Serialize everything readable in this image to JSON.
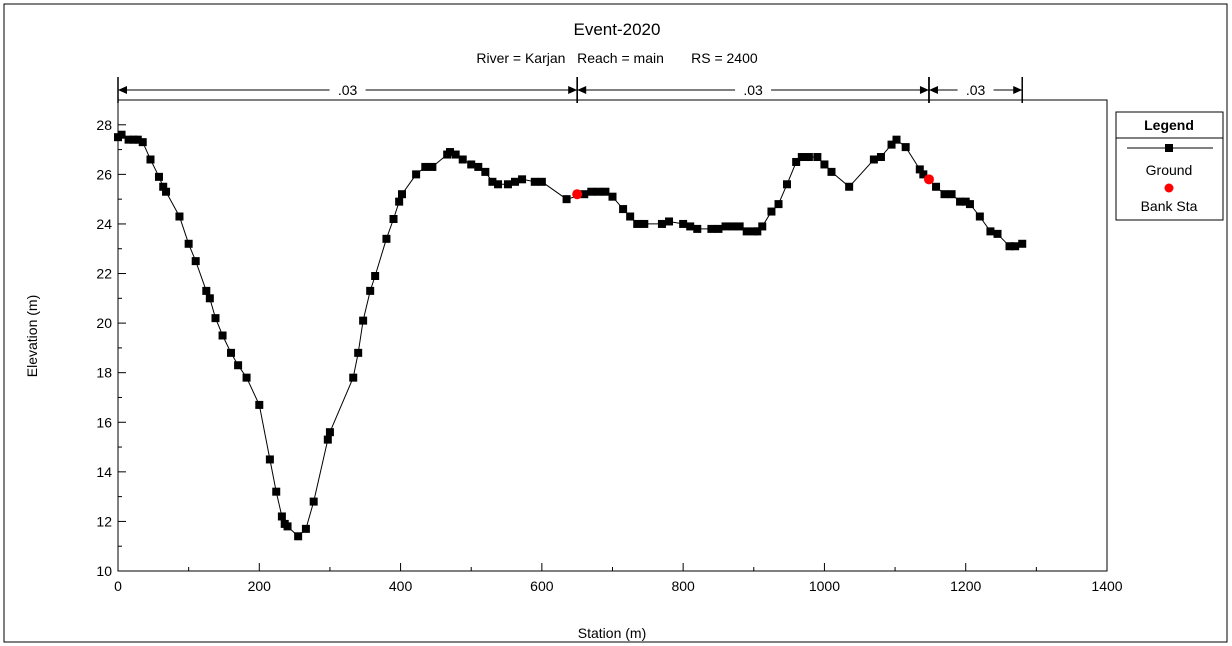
{
  "chart_data": {
    "type": "line",
    "title": "Event-2020",
    "subtitle": "River = Karjan   Reach = main       RS = 2400",
    "xlabel": "Station (m)",
    "ylabel": "Elevation (m)",
    "xlim": [
      0,
      1400
    ],
    "ylim": [
      10,
      29
    ],
    "xticks": [
      "0",
      "200",
      "400",
      "600",
      "800",
      "1000",
      "1200",
      "1400"
    ],
    "yticks": [
      "10",
      "12",
      "14",
      "16",
      "18",
      "20",
      "22",
      "24",
      "26",
      "28"
    ],
    "grid": false,
    "legend": {
      "title": "Legend",
      "placement": "right",
      "entries": [
        "Ground",
        "Bank Sta"
      ]
    },
    "manning": [
      {
        "label": ".03",
        "from": 0,
        "to": 650
      },
      {
        "label": ".03",
        "from": 650,
        "to": 1148
      },
      {
        "label": ".03",
        "from": 1148,
        "to": 1280
      }
    ],
    "series": [
      {
        "name": "Ground",
        "color": "#000000",
        "marker": "square",
        "points": [
          [
            0,
            27.5
          ],
          [
            5,
            27.6
          ],
          [
            15,
            27.4
          ],
          [
            22,
            27.4
          ],
          [
            28,
            27.4
          ],
          [
            35,
            27.3
          ],
          [
            46,
            26.6
          ],
          [
            58,
            25.9
          ],
          [
            64,
            25.5
          ],
          [
            68,
            25.3
          ],
          [
            87,
            24.3
          ],
          [
            100,
            23.2
          ],
          [
            110,
            22.5
          ],
          [
            125,
            21.3
          ],
          [
            130,
            21.0
          ],
          [
            138,
            20.2
          ],
          [
            148,
            19.5
          ],
          [
            160,
            18.8
          ],
          [
            170,
            18.3
          ],
          [
            182,
            17.8
          ],
          [
            200,
            16.7
          ],
          [
            215,
            14.5
          ],
          [
            224,
            13.2
          ],
          [
            232,
            12.2
          ],
          [
            236,
            11.9
          ],
          [
            240,
            11.8
          ],
          [
            255,
            11.4
          ],
          [
            266,
            11.7
          ],
          [
            277,
            12.8
          ],
          [
            297,
            15.3
          ],
          [
            300,
            15.6
          ],
          [
            333,
            17.8
          ],
          [
            340,
            18.8
          ],
          [
            347,
            20.1
          ],
          [
            357,
            21.3
          ],
          [
            364,
            21.9
          ],
          [
            380,
            23.4
          ],
          [
            390,
            24.2
          ],
          [
            398,
            24.9
          ],
          [
            402,
            25.2
          ],
          [
            422,
            26.0
          ],
          [
            435,
            26.3
          ],
          [
            445,
            26.3
          ],
          [
            466,
            26.8
          ],
          [
            470,
            26.9
          ],
          [
            478,
            26.8
          ],
          [
            488,
            26.6
          ],
          [
            500,
            26.4
          ],
          [
            510,
            26.3
          ],
          [
            520,
            26.1
          ],
          [
            530,
            25.7
          ],
          [
            538,
            25.6
          ],
          [
            552,
            25.6
          ],
          [
            562,
            25.7
          ],
          [
            572,
            25.8
          ],
          [
            590,
            25.7
          ],
          [
            600,
            25.7
          ],
          [
            635,
            25.0
          ],
          [
            660,
            25.2
          ],
          [
            670,
            25.3
          ],
          [
            680,
            25.3
          ],
          [
            690,
            25.3
          ],
          [
            700,
            25.1
          ],
          [
            715,
            24.6
          ],
          [
            725,
            24.3
          ],
          [
            735,
            24.0
          ],
          [
            745,
            24.0
          ],
          [
            770,
            24.0
          ],
          [
            780,
            24.1
          ],
          [
            800,
            24.0
          ],
          [
            810,
            23.9
          ],
          [
            820,
            23.8
          ],
          [
            840,
            23.8
          ],
          [
            850,
            23.8
          ],
          [
            860,
            23.9
          ],
          [
            870,
            23.9
          ],
          [
            880,
            23.9
          ],
          [
            890,
            23.7
          ],
          [
            900,
            23.7
          ],
          [
            905,
            23.7
          ],
          [
            912,
            23.9
          ],
          [
            925,
            24.5
          ],
          [
            935,
            24.8
          ],
          [
            947,
            25.6
          ],
          [
            960,
            26.5
          ],
          [
            968,
            26.7
          ],
          [
            978,
            26.7
          ],
          [
            990,
            26.7
          ],
          [
            1000,
            26.4
          ],
          [
            1010,
            26.1
          ],
          [
            1035,
            25.5
          ],
          [
            1070,
            26.6
          ],
          [
            1080,
            26.7
          ],
          [
            1095,
            27.2
          ],
          [
            1102,
            27.4
          ],
          [
            1115,
            27.1
          ],
          [
            1135,
            26.2
          ],
          [
            1140,
            26.0
          ],
          [
            1158,
            25.5
          ],
          [
            1170,
            25.2
          ],
          [
            1180,
            25.2
          ],
          [
            1192,
            24.9
          ],
          [
            1200,
            24.9
          ],
          [
            1206,
            24.8
          ],
          [
            1220,
            24.3
          ],
          [
            1235,
            23.7
          ],
          [
            1245,
            23.6
          ],
          [
            1262,
            23.1
          ],
          [
            1270,
            23.1
          ],
          [
            1280,
            23.2
          ]
        ]
      },
      {
        "name": "Bank Sta",
        "color": "#ff0000",
        "marker": "circle",
        "points": [
          [
            650,
            25.2
          ],
          [
            1148,
            25.8
          ]
        ]
      }
    ]
  }
}
